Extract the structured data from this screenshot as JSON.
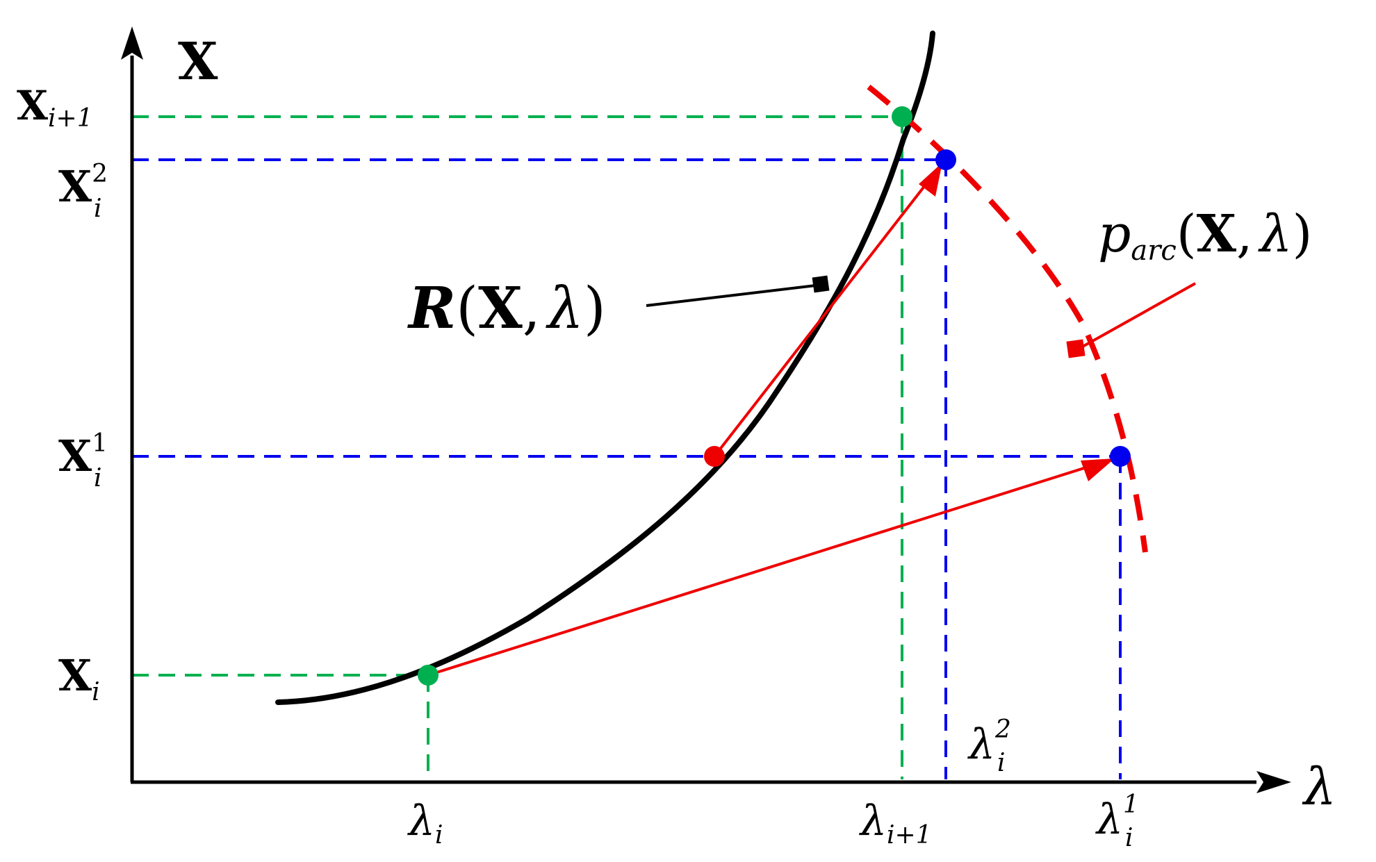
{
  "colors": {
    "axis": "#000000",
    "curve": "#000000",
    "green": "#00b050",
    "blue": "#0000ee",
    "red": "#ee0000"
  },
  "axes": {
    "y_label": "X",
    "x_label": "λ"
  },
  "y_ticks": {
    "x_i1": {
      "base": "X",
      "sub": "i+1"
    },
    "x_i2": {
      "base": "X",
      "sub": "i",
      "sup": "2"
    },
    "x_i1st": {
      "base": "X",
      "sub": "i",
      "sup": "1"
    },
    "x_i": {
      "base": "X",
      "sub": "i"
    }
  },
  "x_ticks": {
    "l_i": {
      "base": "λ",
      "sub": "i"
    },
    "l_i1": {
      "base": "λ",
      "sub": "i+1"
    },
    "l_i2": {
      "base": "λ",
      "sub": "i",
      "sup": "2"
    },
    "l_i1st": {
      "base": "λ",
      "sub": "i",
      "sup": "1"
    }
  },
  "labels": {
    "residual": {
      "fn": "R",
      "open": "(",
      "x": "X",
      "comma": ",",
      "lam": "λ",
      "close": ")"
    },
    "arc": {
      "fn": "p",
      "sub": "arc",
      "open": "(",
      "x": "X",
      "comma": ",",
      "lam": "λ",
      "close": ")"
    }
  },
  "icons": [
    "arrow-head-icon",
    "point-marker-icon"
  ]
}
